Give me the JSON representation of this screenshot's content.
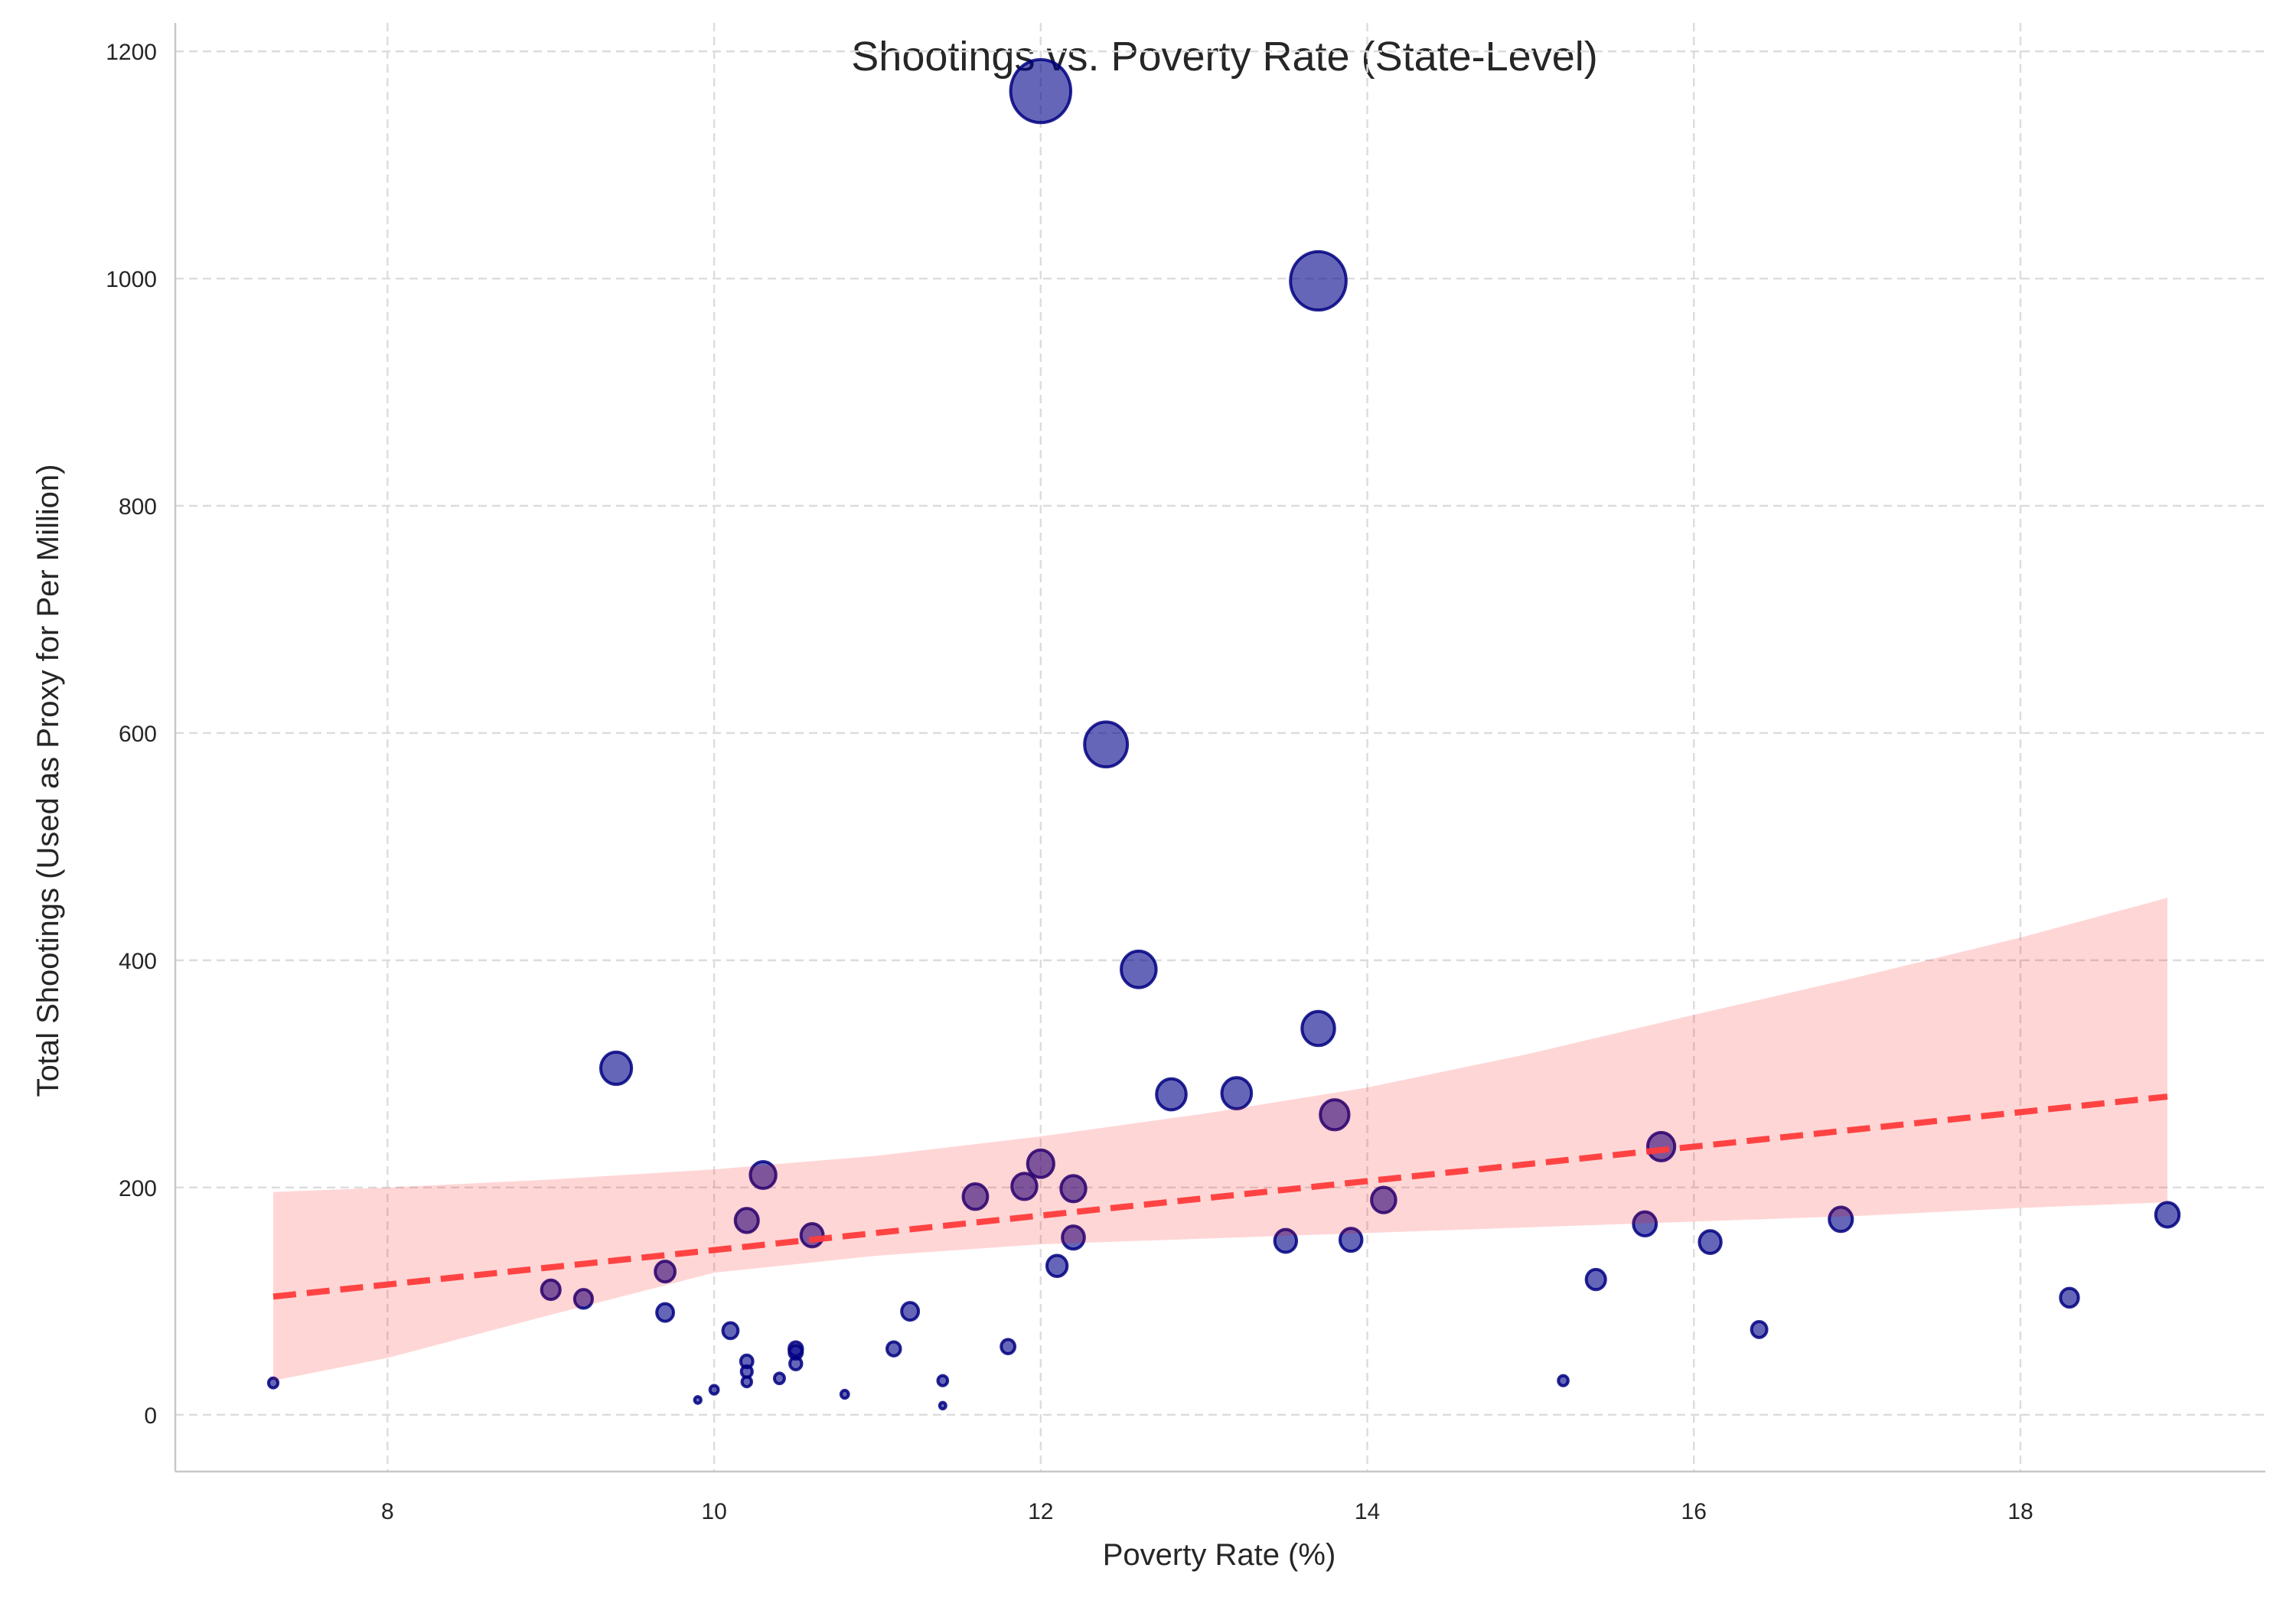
{
  "chart_data": {
    "type": "scatter",
    "title": "Shootings vs. Poverty Rate (State-Level)",
    "xlabel": "Poverty Rate (%)",
    "ylabel": "Total Shootings (Used as Proxy for Per Million)",
    "xlim": [
      6.7,
      19.5
    ],
    "ylim": [
      -50,
      1225
    ],
    "xticks": [
      8,
      10,
      12,
      14,
      16,
      18
    ],
    "yticks": [
      0,
      200,
      400,
      600,
      800,
      1000,
      1200
    ],
    "grid": true,
    "legend": "none",
    "marker_size_encodes": "Total Shootings",
    "colors": {
      "points": "#00008b",
      "regression_line": "#ff3b3b",
      "confidence_band": "#ffd6d6"
    },
    "points": [
      {
        "x": 12.0,
        "y": 1165
      },
      {
        "x": 13.7,
        "y": 998
      },
      {
        "x": 12.4,
        "y": 590
      },
      {
        "x": 12.6,
        "y": 392
      },
      {
        "x": 13.7,
        "y": 340
      },
      {
        "x": 9.4,
        "y": 305
      },
      {
        "x": 12.8,
        "y": 282
      },
      {
        "x": 13.2,
        "y": 283
      },
      {
        "x": 13.8,
        "y": 264
      },
      {
        "x": 15.8,
        "y": 236
      },
      {
        "x": 12.0,
        "y": 221
      },
      {
        "x": 10.3,
        "y": 211
      },
      {
        "x": 11.9,
        "y": 201
      },
      {
        "x": 12.2,
        "y": 199
      },
      {
        "x": 11.6,
        "y": 192
      },
      {
        "x": 14.1,
        "y": 189
      },
      {
        "x": 18.9,
        "y": 176
      },
      {
        "x": 10.2,
        "y": 171
      },
      {
        "x": 16.9,
        "y": 172
      },
      {
        "x": 15.7,
        "y": 168
      },
      {
        "x": 10.6,
        "y": 158
      },
      {
        "x": 12.2,
        "y": 156
      },
      {
        "x": 13.5,
        "y": 153
      },
      {
        "x": 13.9,
        "y": 154
      },
      {
        "x": 16.1,
        "y": 152
      },
      {
        "x": 9.7,
        "y": 126
      },
      {
        "x": 12.1,
        "y": 131
      },
      {
        "x": 15.4,
        "y": 119
      },
      {
        "x": 9.0,
        "y": 110
      },
      {
        "x": 9.2,
        "y": 102
      },
      {
        "x": 18.3,
        "y": 103
      },
      {
        "x": 9.7,
        "y": 90
      },
      {
        "x": 11.2,
        "y": 91
      },
      {
        "x": 10.1,
        "y": 74
      },
      {
        "x": 16.4,
        "y": 75
      },
      {
        "x": 11.8,
        "y": 60
      },
      {
        "x": 10.5,
        "y": 58
      },
      {
        "x": 11.1,
        "y": 58
      },
      {
        "x": 10.5,
        "y": 55
      },
      {
        "x": 10.2,
        "y": 47
      },
      {
        "x": 10.5,
        "y": 45
      },
      {
        "x": 10.2,
        "y": 38
      },
      {
        "x": 10.4,
        "y": 32
      },
      {
        "x": 11.4,
        "y": 30
      },
      {
        "x": 10.2,
        "y": 29
      },
      {
        "x": 15.2,
        "y": 30
      },
      {
        "x": 7.3,
        "y": 28
      },
      {
        "x": 10.0,
        "y": 22
      },
      {
        "x": 10.8,
        "y": 18
      },
      {
        "x": 9.9,
        "y": 13
      },
      {
        "x": 11.4,
        "y": 8
      }
    ],
    "regression": {
      "style": "dashed",
      "x": [
        7.3,
        18.9
      ],
      "y": [
        104,
        280
      ]
    },
    "confidence_band": {
      "x": [
        7.3,
        8.0,
        9.0,
        10.0,
        11.0,
        12.0,
        13.0,
        14.0,
        15.0,
        16.0,
        17.0,
        18.0,
        18.9
      ],
      "lower": [
        30,
        50,
        88,
        125,
        140,
        150,
        155,
        160,
        165,
        170,
        175,
        182,
        187
      ],
      "upper": [
        196,
        200,
        207,
        216,
        228,
        245,
        265,
        288,
        318,
        352,
        385,
        420,
        455
      ]
    }
  }
}
